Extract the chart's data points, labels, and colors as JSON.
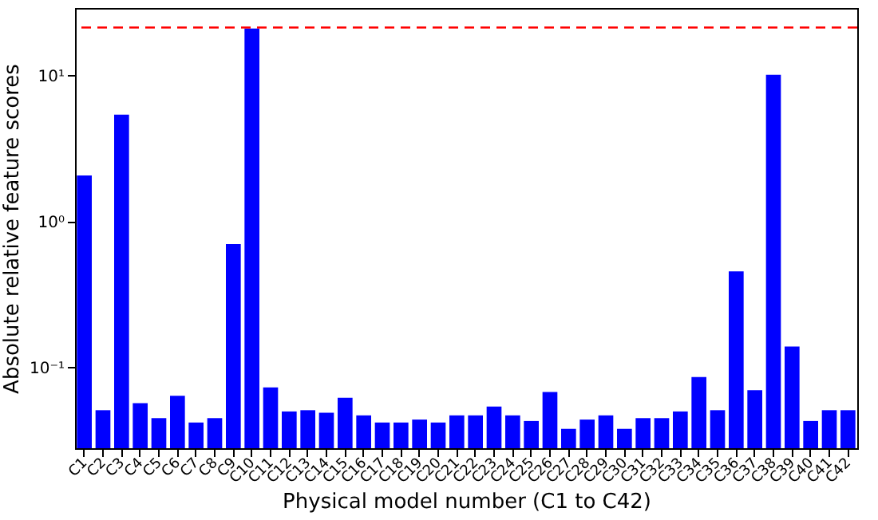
{
  "chart_data": {
    "type": "bar",
    "xlabel": "Physical model number (C1 to C42)",
    "ylabel": "Absolute relative feature scores",
    "categories": [
      "C1",
      "C2",
      "C3",
      "C4",
      "C5",
      "C6",
      "C7",
      "C8",
      "C9",
      "C10",
      "C11",
      "C12",
      "C13",
      "C14",
      "C15",
      "C16",
      "C17",
      "C18",
      "C19",
      "C20",
      "C21",
      "C22",
      "C23",
      "C24",
      "C25",
      "C26",
      "C27",
      "C28",
      "C29",
      "C30",
      "C31",
      "C32",
      "C33",
      "C34",
      "C35",
      "C36",
      "C37",
      "C38",
      "C39",
      "C40",
      "C41",
      "C42"
    ],
    "values": [
      2.07,
      0.051,
      5.4,
      0.057,
      0.045,
      0.064,
      0.042,
      0.045,
      0.7,
      21.0,
      0.073,
      0.05,
      0.051,
      0.049,
      0.062,
      0.047,
      0.042,
      0.042,
      0.044,
      0.042,
      0.047,
      0.047,
      0.054,
      0.047,
      0.043,
      0.068,
      0.038,
      0.044,
      0.047,
      0.038,
      0.045,
      0.045,
      0.05,
      0.086,
      0.051,
      0.455,
      0.07,
      10.1,
      0.139,
      0.043,
      0.051,
      0.051
    ],
    "color": "#0000ff",
    "log": true,
    "ylim": [
      0.028,
      29
    ],
    "yticks": [
      {
        "value": 0.1,
        "label": "10⁻¹"
      },
      {
        "value": 1,
        "label": "10⁰"
      },
      {
        "value": 10,
        "label": "10¹"
      }
    ],
    "ref_lines": [
      {
        "axis": "y",
        "value": 21.3,
        "color": "#ff0000",
        "line_style": "dashed"
      }
    ],
    "grid": false
  }
}
